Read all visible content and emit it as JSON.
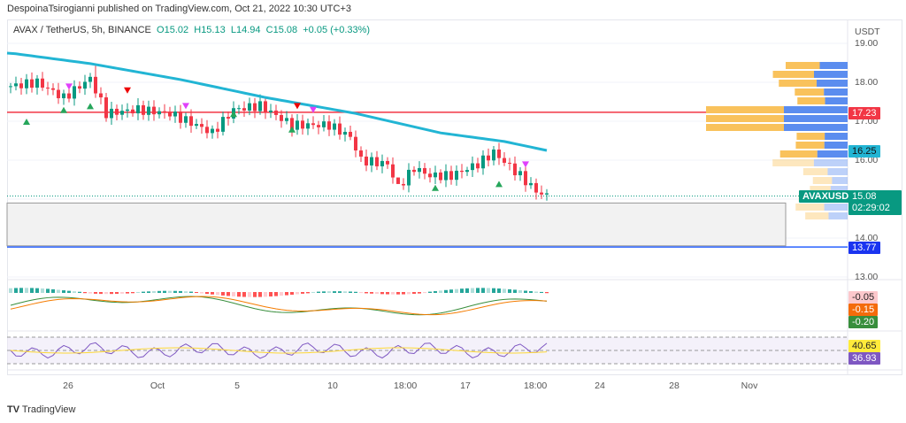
{
  "header": {
    "published": "DespoinaTsirogianni published on TradingView.com, Oct 21, 2022 10:30 UTC+3"
  },
  "legend": {
    "symbol": "AVAX / TetherUS, 5h, BINANCE",
    "open": "O15.02",
    "high": "H15.13",
    "low": "L14.94",
    "close": "C15.08",
    "change": "+0.05 (+0.33%)"
  },
  "price_axis": {
    "unit": "USDT",
    "ticks": [
      "19.00",
      "18.00",
      "17.00",
      "16.00",
      "14.00",
      "13.00"
    ]
  },
  "labels": {
    "resistance": "17.23",
    "ma": "16.25",
    "ticker": "AVAXUSDT",
    "price": "15.08",
    "countdown": "02:29:02",
    "support": "13.77",
    "macd1": "-0.05",
    "macd2": "-0.15",
    "macd3": "-0.20",
    "rsi_ma": "40.65",
    "rsi": "36.93"
  },
  "time_axis": [
    "26",
    "Oct",
    "5",
    "10",
    "18:00",
    "17",
    "18:00",
    "24",
    "28",
    "Nov"
  ],
  "colors": {
    "up": "#089981",
    "down": "#f23645",
    "ma": "#22b5d4",
    "resistance": "#f23645",
    "support": "#2962ff",
    "vp_up": "#5b8def",
    "vp_down": "#f9c25c",
    "rsi": "#7e57c2"
  },
  "price_path": [
    [
      0,
      17.9
    ],
    [
      5,
      18.0
    ],
    [
      10,
      17.6
    ],
    [
      15,
      18.1
    ],
    [
      18,
      17.2
    ],
    [
      24,
      17.3
    ],
    [
      30,
      17.2
    ],
    [
      35,
      16.9
    ],
    [
      38,
      16.7
    ],
    [
      42,
      17.3
    ],
    [
      47,
      17.4
    ],
    [
      53,
      16.9
    ],
    [
      60,
      16.9
    ],
    [
      64,
      16.6
    ],
    [
      66,
      16.0
    ],
    [
      71,
      15.9
    ],
    [
      73,
      15.3
    ],
    [
      76,
      15.8
    ],
    [
      79,
      15.6
    ],
    [
      83,
      15.6
    ],
    [
      88,
      15.9
    ],
    [
      91,
      16.2
    ],
    [
      96,
      15.6
    ],
    [
      99,
      15.2
    ],
    [
      101,
      15.08
    ]
  ],
  "ma_path": [
    [
      0,
      18.75
    ],
    [
      15,
      18.48
    ],
    [
      32,
      18.07
    ],
    [
      48,
      17.61
    ],
    [
      65,
      17.2
    ],
    [
      81,
      16.7
    ],
    [
      93,
      16.48
    ],
    [
      101,
      16.25
    ]
  ],
  "footer": {
    "brand": "TradingView"
  }
}
